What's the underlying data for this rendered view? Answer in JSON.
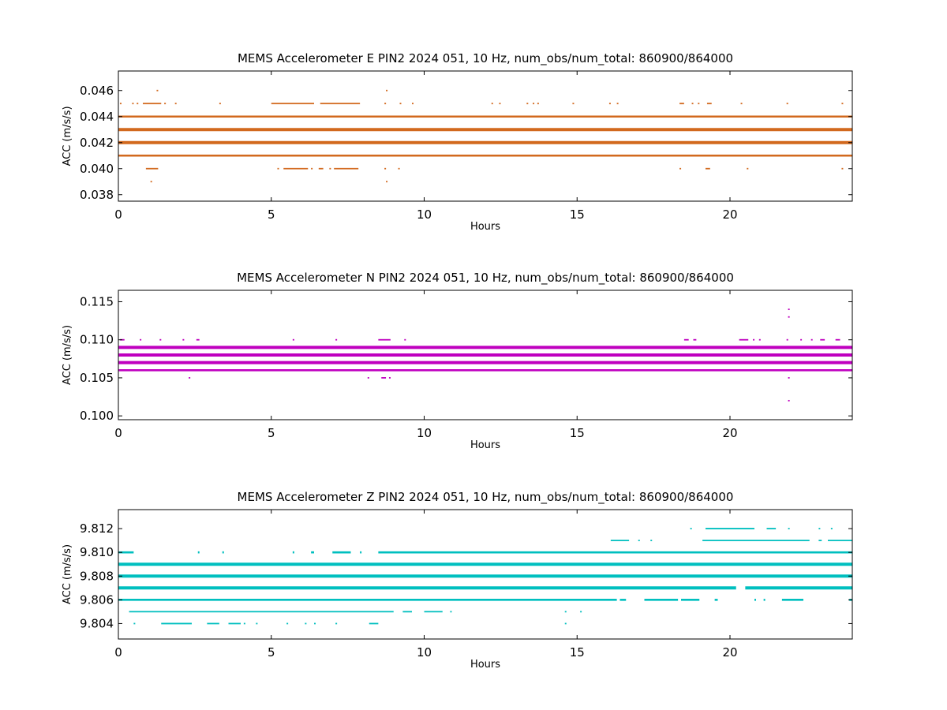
{
  "chart_data": [
    {
      "type": "scatter",
      "title": "MEMS Accelerometer E PIN2 2024 051, 10 Hz, num_obs/num_total: 860900/864000",
      "xlabel": "Hours",
      "ylabel": "ACC (m/s/s)",
      "xlim": [
        0,
        24
      ],
      "ylim": [
        0.0375,
        0.0475
      ],
      "xticks": [
        0,
        5,
        10,
        15,
        20
      ],
      "yticks": [
        0.038,
        0.04,
        0.042,
        0.044,
        0.046
      ],
      "tick_decimals": 3,
      "color": "#d2691e",
      "grid": false,
      "series": [
        {
          "levels": [
            {
              "y": 0.043,
              "segments": [
                [
                  0,
                  24
                ]
              ],
              "weight": "heavy"
            },
            {
              "y": 0.042,
              "segments": [
                [
                  0,
                  24
                ]
              ],
              "weight": "heavy"
            },
            {
              "y": 0.044,
              "segments": [
                [
                  0,
                  24
                ]
              ],
              "weight": "medium"
            },
            {
              "y": 0.041,
              "segments": [
                [
                  0,
                  24
                ]
              ],
              "weight": "medium"
            },
            {
              "y": 0.045,
              "segments": [
                [
                  0.05,
                  0.1
                ],
                [
                  0.45,
                  0.5
                ],
                [
                  0.6,
                  0.65
                ],
                [
                  0.8,
                  1.4
                ],
                [
                  1.5,
                  1.55
                ],
                [
                  1.85,
                  1.9
                ],
                [
                  3.3,
                  3.35
                ],
                [
                  5.0,
                  6.4
                ],
                [
                  6.6,
                  7.9
                ],
                [
                  8.7,
                  8.75
                ],
                [
                  9.2,
                  9.25
                ],
                [
                  9.6,
                  9.65
                ],
                [
                  12.2,
                  12.25
                ],
                [
                  12.45,
                  12.5
                ],
                [
                  13.35,
                  13.4
                ],
                [
                  13.55,
                  13.6
                ],
                [
                  13.7,
                  13.75
                ],
                [
                  14.85,
                  14.9
                ],
                [
                  16.05,
                  16.1
                ],
                [
                  16.3,
                  16.35
                ],
                [
                  18.35,
                  18.5
                ],
                [
                  18.75,
                  18.8
                ],
                [
                  18.95,
                  19.0
                ],
                [
                  19.25,
                  19.4
                ],
                [
                  20.35,
                  20.4
                ],
                [
                  21.85,
                  21.9
                ],
                [
                  23.65,
                  23.7
                ]
              ],
              "weight": "light"
            },
            {
              "y": 0.04,
              "segments": [
                [
                  0.9,
                  1.3
                ],
                [
                  5.2,
                  5.25
                ],
                [
                  5.4,
                  6.2
                ],
                [
                  6.3,
                  6.35
                ],
                [
                  6.55,
                  6.7
                ],
                [
                  6.9,
                  6.95
                ],
                [
                  7.05,
                  7.85
                ],
                [
                  8.7,
                  8.75
                ],
                [
                  9.15,
                  9.2
                ],
                [
                  18.35,
                  18.4
                ],
                [
                  19.2,
                  19.35
                ],
                [
                  20.55,
                  20.6
                ],
                [
                  23.65,
                  23.7
                ]
              ],
              "weight": "light"
            },
            {
              "y": 0.046,
              "segments": [
                [
                  1.25,
                  1.28
                ],
                [
                  8.75,
                  8.78
                ]
              ],
              "weight": "dot"
            },
            {
              "y": 0.039,
              "segments": [
                [
                  1.05,
                  1.08
                ],
                [
                  8.75,
                  8.78
                ]
              ],
              "weight": "dot"
            }
          ]
        }
      ]
    },
    {
      "type": "scatter",
      "title": "MEMS Accelerometer N PIN2 2024 051, 10 Hz, num_obs/num_total: 860900/864000",
      "xlabel": "Hours",
      "ylabel": "ACC (m/s/s)",
      "xlim": [
        0,
        24
      ],
      "ylim": [
        0.0995,
        0.1165
      ],
      "xticks": [
        0,
        5,
        10,
        15,
        20
      ],
      "yticks": [
        0.1,
        0.105,
        0.11,
        0.115
      ],
      "tick_decimals": 3,
      "color": "#bf00bf",
      "grid": false,
      "series": [
        {
          "levels": [
            {
              "y": 0.109,
              "segments": [
                [
                  0,
                  24
                ]
              ],
              "weight": "heavy"
            },
            {
              "y": 0.108,
              "segments": [
                [
                  0,
                  24
                ]
              ],
              "weight": "heavy"
            },
            {
              "y": 0.107,
              "segments": [
                [
                  0,
                  24
                ]
              ],
              "weight": "heavy"
            },
            {
              "y": 0.106,
              "segments": [
                [
                  0,
                  24
                ]
              ],
              "weight": "medium"
            },
            {
              "y": 0.11,
              "segments": [
                [
                  0.05,
                  0.2
                ],
                [
                  0.7,
                  0.75
                ],
                [
                  1.35,
                  1.4
                ],
                [
                  2.1,
                  2.15
                ],
                [
                  2.55,
                  2.65
                ],
                [
                  5.7,
                  5.75
                ],
                [
                  7.1,
                  7.15
                ],
                [
                  8.5,
                  8.9
                ],
                [
                  9.35,
                  9.4
                ],
                [
                  18.5,
                  18.65
                ],
                [
                  18.8,
                  18.9
                ],
                [
                  20.3,
                  20.6
                ],
                [
                  20.75,
                  20.8
                ],
                [
                  20.95,
                  21.0
                ],
                [
                  21.85,
                  21.9
                ],
                [
                  22.3,
                  22.35
                ],
                [
                  22.65,
                  22.7
                ],
                [
                  22.95,
                  23.1
                ],
                [
                  23.45,
                  23.6
                ]
              ],
              "weight": "light"
            },
            {
              "y": 0.105,
              "segments": [
                [
                  2.3,
                  2.33
                ],
                [
                  8.15,
                  8.18
                ],
                [
                  8.6,
                  8.75
                ],
                [
                  8.85,
                  8.88
                ],
                [
                  21.9,
                  21.93
                ]
              ],
              "weight": "dot"
            },
            {
              "y": 0.113,
              "segments": [
                [
                  21.9,
                  21.93
                ]
              ],
              "weight": "dot"
            },
            {
              "y": 0.114,
              "segments": [
                [
                  21.9,
                  21.93
                ]
              ],
              "weight": "dot"
            },
            {
              "y": 0.102,
              "segments": [
                [
                  21.9,
                  21.93
                ]
              ],
              "weight": "dot"
            }
          ]
        }
      ]
    },
    {
      "type": "scatter",
      "title": "MEMS Accelerometer Z PIN2 2024 051, 10 Hz, num_obs/num_total: 860900/864000",
      "xlabel": "Hours",
      "ylabel": "ACC (m/s/s)",
      "xlim": [
        0,
        24
      ],
      "ylim": [
        9.8027,
        9.8136
      ],
      "xticks": [
        0,
        5,
        10,
        15,
        20
      ],
      "yticks": [
        9.804,
        9.806,
        9.808,
        9.81,
        9.812
      ],
      "tick_decimals": 3,
      "color": "#00bfbf",
      "grid": false,
      "series": [
        {
          "levels": [
            {
              "y": 9.809,
              "segments": [
                [
                  0,
                  24
                ]
              ],
              "weight": "heavy"
            },
            {
              "y": 9.808,
              "segments": [
                [
                  0,
                  24
                ]
              ],
              "weight": "heavy"
            },
            {
              "y": 9.807,
              "segments": [
                [
                  0,
                  20.2
                ],
                [
                  20.5,
                  24
                ]
              ],
              "weight": "heavy"
            },
            {
              "y": 9.806,
              "segments": [
                [
                  0,
                  16.3
                ],
                [
                  16.4,
                  16.6
                ],
                [
                  17.2,
                  18.3
                ],
                [
                  18.4,
                  19.0
                ],
                [
                  19.5,
                  19.6
                ],
                [
                  20.8,
                  20.85
                ],
                [
                  21.1,
                  21.15
                ],
                [
                  21.7,
                  22.4
                ],
                [
                  23.9,
                  24
                ]
              ],
              "weight": "medium"
            },
            {
              "y": 9.81,
              "segments": [
                [
                  0,
                  0.5
                ],
                [
                  2.6,
                  2.63
                ],
                [
                  3.4,
                  3.43
                ],
                [
                  5.7,
                  5.73
                ],
                [
                  6.3,
                  6.4
                ],
                [
                  7.0,
                  7.6
                ],
                [
                  7.9,
                  7.93
                ],
                [
                  8.5,
                  10.0
                ],
                [
                  10.0,
                  24
                ]
              ],
              "weight": "medium"
            },
            {
              "y": 9.805,
              "segments": [
                [
                  0.35,
                  9.0
                ],
                [
                  9.3,
                  9.6
                ],
                [
                  10.0,
                  10.6
                ],
                [
                  10.85,
                  10.9
                ],
                [
                  14.6,
                  14.63
                ],
                [
                  15.1,
                  15.13
                ]
              ],
              "weight": "light"
            },
            {
              "y": 9.811,
              "segments": [
                [
                  16.1,
                  16.7
                ],
                [
                  17.0,
                  17.05
                ],
                [
                  17.4,
                  17.45
                ],
                [
                  19.1,
                  22.6
                ],
                [
                  22.9,
                  23.0
                ],
                [
                  23.2,
                  24
                ]
              ],
              "weight": "light"
            },
            {
              "y": 9.812,
              "segments": [
                [
                  18.7,
                  18.73
                ],
                [
                  19.2,
                  20.8
                ],
                [
                  21.2,
                  21.5
                ],
                [
                  21.9,
                  21.93
                ],
                [
                  22.9,
                  22.93
                ],
                [
                  23.3,
                  23.33
                ]
              ],
              "weight": "light"
            },
            {
              "y": 9.804,
              "segments": [
                [
                  0.5,
                  0.55
                ],
                [
                  1.4,
                  2.4
                ],
                [
                  2.9,
                  3.3
                ],
                [
                  3.6,
                  4.0
                ],
                [
                  4.1,
                  4.15
                ],
                [
                  4.5,
                  4.55
                ],
                [
                  5.5,
                  5.55
                ],
                [
                  6.1,
                  6.15
                ],
                [
                  6.4,
                  6.45
                ],
                [
                  7.1,
                  7.15
                ],
                [
                  8.2,
                  8.5
                ],
                [
                  14.6,
                  14.63
                ]
              ],
              "weight": "light"
            }
          ]
        }
      ]
    }
  ]
}
